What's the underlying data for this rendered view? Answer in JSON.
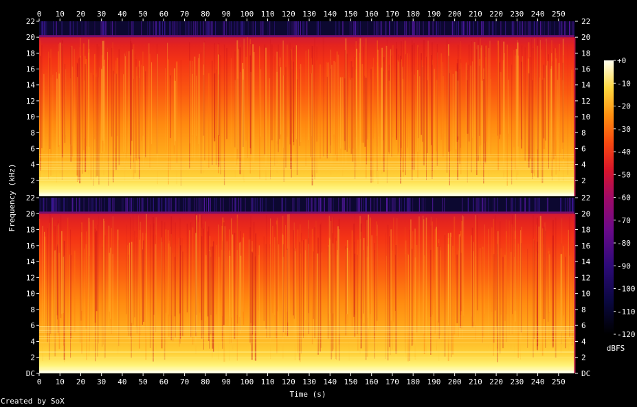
{
  "chart_data": {
    "type": "heatmap",
    "title": "",
    "xlabel": "Time (s)",
    "ylabel": "Frequency (kHz)",
    "x_ticks": [
      "0",
      "10",
      "20",
      "30",
      "40",
      "50",
      "60",
      "70",
      "80",
      "90",
      "100",
      "110",
      "120",
      "130",
      "140",
      "150",
      "160",
      "170",
      "180",
      "190",
      "200",
      "210",
      "220",
      "230",
      "240",
      "250"
    ],
    "xlim": [
      0,
      258
    ],
    "channels": [
      {
        "y_ticks_left": [
          "22",
          "20",
          "18",
          "16",
          "14",
          "12",
          "10",
          "8",
          "6",
          "4",
          "2"
        ],
        "y_ticks_right": [
          "22",
          "20",
          "18",
          "16",
          "14",
          "12",
          "10",
          "8",
          "6",
          "4",
          "2"
        ],
        "ylim_khz": [
          0,
          22
        ],
        "spectrum_cutoff_khz": 20
      },
      {
        "y_ticks_left": [
          "22",
          "20",
          "18",
          "16",
          "14",
          "12",
          "10",
          "8",
          "6",
          "4",
          "2",
          "DC"
        ],
        "y_ticks_right": [
          "22",
          "20",
          "18",
          "16",
          "14",
          "12",
          "10",
          "8",
          "6",
          "4",
          "2",
          "DC"
        ],
        "ylim_khz": [
          0,
          22
        ],
        "spectrum_cutoff_khz": 20
      }
    ],
    "colorbar": {
      "label": "dBFS",
      "ticks": [
        "+0",
        "-10",
        "-20",
        "-30",
        "-40",
        "-50",
        "-60",
        "-70",
        "-80",
        "-90",
        "-100",
        "-110",
        "-120"
      ],
      "range_db": [
        -120,
        0
      ]
    }
  },
  "footer": {
    "credit": "Created by SoX"
  }
}
